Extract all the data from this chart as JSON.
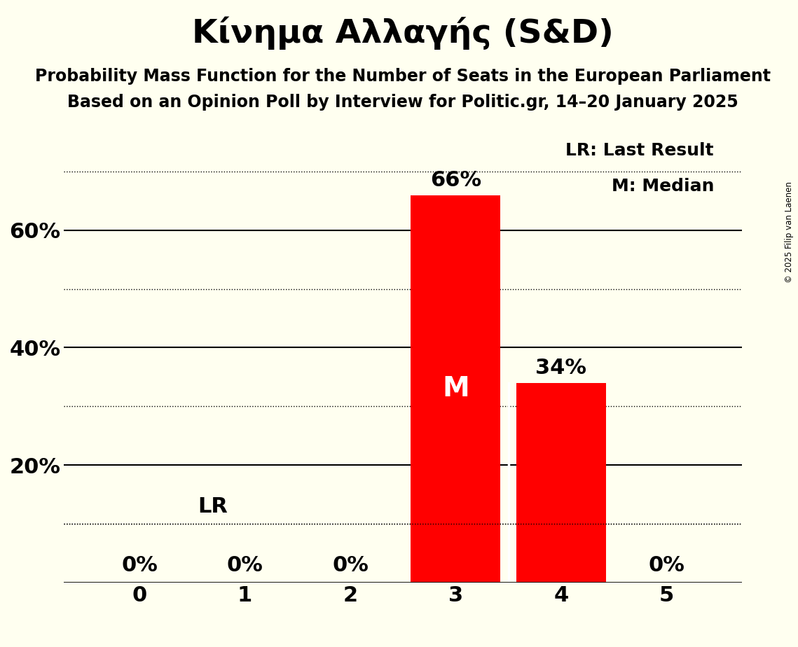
{
  "title": "Κίνημα Αλλαγής (S&D)",
  "subtitle1": "Probability Mass Function for the Number of Seats in the European Parliament",
  "subtitle2": "Based on an Opinion Poll by Interview for Politic.gr, 14–20 January 2025",
  "copyright": "© 2025 Filip van Laenen",
  "categories": [
    0,
    1,
    2,
    3,
    4,
    5
  ],
  "values": [
    0.0,
    0.0,
    0.0,
    0.66,
    0.34,
    0.0
  ],
  "bar_color": "#ff0000",
  "background_color": "#fffff0",
  "text_color": "#000000",
  "bar_labels": [
    "0%",
    "0%",
    "0%",
    "66%",
    "34%",
    "0%"
  ],
  "median_bar": 3,
  "last_result_value": 0.1,
  "lr_label": "LR",
  "median_label": "M",
  "legend_lr": "LR: Last Result",
  "legend_m": "M: Median",
  "ylim": [
    0,
    0.75
  ],
  "ytick_positions": [
    0.0,
    0.1,
    0.2,
    0.3,
    0.4,
    0.5,
    0.6,
    0.7
  ],
  "ytick_labels": [
    "",
    "",
    "20%",
    "",
    "40%",
    "",
    "60%",
    ""
  ],
  "solid_yticks": [
    0.2,
    0.4,
    0.6
  ],
  "dotted_yticks": [
    0.1,
    0.3,
    0.5,
    0.7
  ],
  "title_fontsize": 34,
  "subtitle_fontsize": 17,
  "tick_fontsize": 22,
  "bar_label_fontsize": 22,
  "median_fontsize": 28,
  "legend_fontsize": 18,
  "bar_width": 0.85
}
